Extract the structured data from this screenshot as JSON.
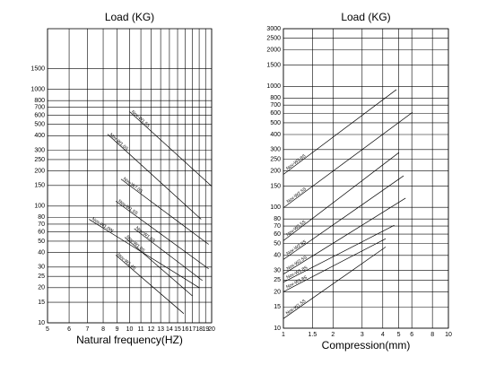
{
  "chart_data": [
    {
      "type": "line",
      "title": "Load (KG)",
      "x_label": "Natural frequency(HZ)",
      "log_x": true,
      "log_y": true,
      "grid": true,
      "xlim": [
        5,
        20
      ],
      "ylim": [
        10,
        3300
      ],
      "xticks": [
        5,
        6,
        7,
        8,
        9,
        10,
        11,
        12,
        13,
        14,
        15,
        16,
        17,
        18,
        19,
        20
      ],
      "yticks": [
        10,
        15,
        20,
        25,
        30,
        40,
        50,
        60,
        70,
        80,
        100,
        150,
        200,
        250,
        300,
        400,
        500,
        600,
        700,
        800,
        1000,
        1500
      ],
      "series": [
        {
          "name": "Nov-W1.5S",
          "color": "#000000",
          "x": [
            10.0,
            20
          ],
          "values": [
            643,
            148
          ]
        },
        {
          "name": "Nov-W1.0S",
          "color": "#000000",
          "x": [
            8.3,
            18.3
          ],
          "values": [
            412,
            77
          ]
        },
        {
          "name": "Nov-W7.0S",
          "color": "#000000",
          "x": [
            9.3,
            19.5
          ],
          "values": [
            170,
            47
          ]
        },
        {
          "name": "Nov-W1.5S",
          "color": "#000000",
          "x": [
            8.9,
            19.5
          ],
          "values": [
            110,
            29
          ]
        },
        {
          "name": "Nov-W1.0W",
          "color": "#000000",
          "x": [
            7.1,
            18
          ],
          "values": [
            77,
            20
          ]
        },
        {
          "name": "Nov-W1.6S",
          "color": "#000000",
          "x": [
            10.4,
            18.5
          ],
          "values": [
            64,
            23
          ]
        },
        {
          "name": "Nov-W1.0S",
          "color": "#000000",
          "x": [
            9.6,
            17
          ],
          "values": [
            54,
            17
          ]
        },
        {
          "name": "Nov-W1.4S",
          "color": "#000000",
          "x": [
            8.9,
            15.8
          ],
          "values": [
            38,
            12
          ]
        }
      ]
    },
    {
      "type": "line",
      "title": "Load (KG)",
      "x_label": "Compression(mm)",
      "log_x": true,
      "log_y": true,
      "grid": true,
      "xlim": [
        1,
        10
      ],
      "ylim": [
        10,
        3000
      ],
      "xticks": [
        1,
        1.5,
        2,
        3,
        4,
        5,
        6,
        8,
        10
      ],
      "yticks": [
        10,
        15,
        20,
        25,
        30,
        40,
        50,
        60,
        70,
        80,
        100,
        150,
        200,
        250,
        300,
        400,
        500,
        600,
        700,
        800,
        1000,
        1500,
        2000,
        2500,
        3000
      ],
      "series": [
        {
          "name": "Nov-W3.8S",
          "color": "#000000",
          "x": [
            1,
            4.84
          ],
          "values": [
            187,
            940
          ]
        },
        {
          "name": "Nov-W2.5S",
          "color": "#000000",
          "x": [
            1,
            6.06
          ],
          "values": [
            99,
            610
          ]
        },
        {
          "name": "Nov-W3.5S",
          "color": "#000000",
          "x": [
            1,
            5.02
          ],
          "values": [
            53,
            284
          ]
        },
        {
          "name": "Nov-W2.8S",
          "color": "#000000",
          "x": [
            1,
            5.35
          ],
          "values": [
            37,
            182
          ]
        },
        {
          "name": "Nov-W2.5S",
          "color": "#000000",
          "x": [
            1,
            5.5
          ],
          "values": [
            28,
            119
          ]
        },
        {
          "name": "Nov-W1.8S",
          "color": "#000000",
          "x": [
            1,
            4.7
          ],
          "values": [
            24,
            71
          ]
        },
        {
          "name": "Nov-W1.8S",
          "color": "#000000",
          "x": [
            1,
            4.17
          ],
          "values": [
            20,
            55
          ]
        },
        {
          "name": "Nov-W1.5S",
          "color": "#000000",
          "x": [
            1,
            4.17
          ],
          "values": [
            12,
            47
          ]
        }
      ]
    }
  ]
}
